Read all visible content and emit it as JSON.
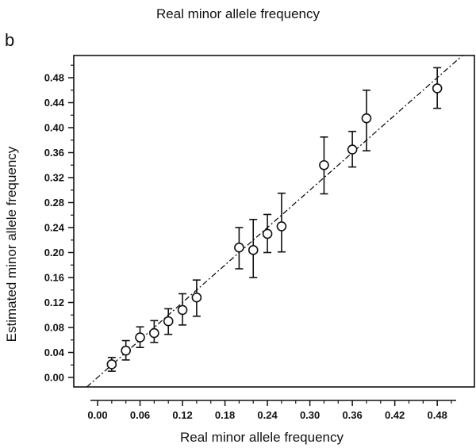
{
  "figure": {
    "top_title": "Real minor allele frequency",
    "panel_label": "b"
  },
  "chart_data": {
    "type": "scatter",
    "title": "Real minor allele frequency",
    "xlabel": "Real minor allele frequency",
    "ylabel": "Estimated minor allele frequency",
    "xlim": [
      -0.01,
      0.505
    ],
    "ylim": [
      -0.01,
      0.505
    ],
    "x_ticks": [
      "0.00",
      "0.06",
      "0.12",
      "0.18",
      "0.24",
      "0.30",
      "0.36",
      "0.42",
      "0.48"
    ],
    "x_tick_values": [
      0.0,
      0.06,
      0.12,
      0.18,
      0.24,
      0.3,
      0.36,
      0.42,
      0.48
    ],
    "x_minor_ticks": [
      0.02,
      0.04,
      0.08,
      0.1,
      0.14,
      0.16,
      0.2,
      0.22,
      0.26,
      0.28,
      0.32,
      0.34,
      0.38,
      0.4,
      0.44,
      0.46,
      0.5
    ],
    "y_ticks": [
      "0.00",
      "0.04",
      "0.08",
      "0.12",
      "0.16",
      "0.20",
      "0.24",
      "0.28",
      "0.32",
      "0.36",
      "0.40",
      "0.44",
      "0.48"
    ],
    "y_tick_values": [
      0.0,
      0.04,
      0.08,
      0.12,
      0.16,
      0.2,
      0.24,
      0.28,
      0.32,
      0.36,
      0.4,
      0.44,
      0.48
    ],
    "y_minor_ticks": [
      0.02,
      0.06,
      0.1,
      0.14,
      0.18,
      0.22,
      0.26,
      0.3,
      0.34,
      0.38,
      0.42,
      0.46,
      0.5
    ],
    "reference_line": "y = x (dash-dot)",
    "grid": false,
    "points": [
      {
        "x": 0.02,
        "y": 0.021,
        "low": 0.01,
        "high": 0.032
      },
      {
        "x": 0.04,
        "y": 0.043,
        "low": 0.028,
        "high": 0.059
      },
      {
        "x": 0.06,
        "y": 0.064,
        "low": 0.048,
        "high": 0.081
      },
      {
        "x": 0.08,
        "y": 0.071,
        "low": 0.056,
        "high": 0.091
      },
      {
        "x": 0.1,
        "y": 0.09,
        "low": 0.069,
        "high": 0.11
      },
      {
        "x": 0.12,
        "y": 0.108,
        "low": 0.084,
        "high": 0.134
      },
      {
        "x": 0.14,
        "y": 0.128,
        "low": 0.098,
        "high": 0.156
      },
      {
        "x": 0.2,
        "y": 0.208,
        "low": 0.174,
        "high": 0.24
      },
      {
        "x": 0.22,
        "y": 0.204,
        "low": 0.16,
        "high": 0.253
      },
      {
        "x": 0.24,
        "y": 0.23,
        "low": 0.2,
        "high": 0.261
      },
      {
        "x": 0.26,
        "y": 0.242,
        "low": 0.201,
        "high": 0.295
      },
      {
        "x": 0.32,
        "y": 0.34,
        "low": 0.294,
        "high": 0.385
      },
      {
        "x": 0.36,
        "y": 0.365,
        "low": 0.337,
        "high": 0.394
      },
      {
        "x": 0.38,
        "y": 0.415,
        "low": 0.363,
        "high": 0.46
      },
      {
        "x": 0.48,
        "y": 0.463,
        "low": 0.431,
        "high": 0.496
      }
    ]
  }
}
